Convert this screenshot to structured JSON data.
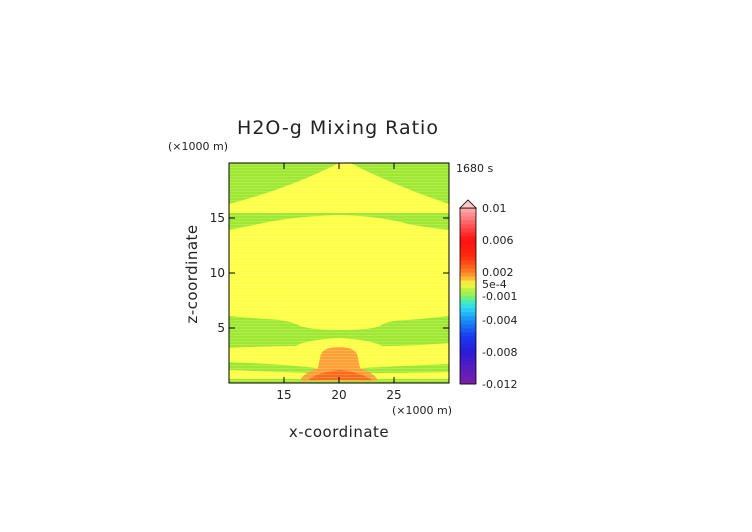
{
  "chart_data": {
    "type": "heatmap",
    "title": "H2O-g Mixing Ratio",
    "xlabel": "x-coordinate",
    "ylabel": "z-coordinate",
    "x_unit": "(×1000 m)",
    "y_unit": "(×1000 m)",
    "time_label": "1680 s",
    "xlim": [
      10,
      30
    ],
    "ylim": [
      0,
      20
    ],
    "xticks": [
      15,
      20,
      25
    ],
    "yticks": [
      5,
      10,
      15
    ],
    "grid": false,
    "colorbar": {
      "position": "right",
      "min": -0.012,
      "max": 0.01,
      "labels": [
        "0.01",
        "0.006",
        "0.002",
        "5e-4",
        "-0.001",
        "-0.004",
        "-0.008",
        "-0.012"
      ],
      "label_values": [
        0.01,
        0.006,
        0.002,
        0.0005,
        -0.001,
        -0.004,
        -0.008,
        -0.012
      ]
    },
    "regions": [
      {
        "name": "background",
        "color": "#9fe830",
        "level": "-0.001 to 0"
      },
      {
        "name": "upper-layer",
        "color": "#ffff44",
        "level": "0 to 5e-4"
      },
      {
        "name": "mid-layer",
        "color": "#ffff44",
        "level": "0 to 5e-4"
      },
      {
        "name": "low-band",
        "color": "#ffff44",
        "level": "0 to 5e-4"
      },
      {
        "name": "plume",
        "color": "#ffa033",
        "level": "5e-4 to 0.002"
      },
      {
        "name": "plume-core",
        "color": "#ff6a1a",
        "level": "0.002 to 0.003"
      }
    ]
  }
}
